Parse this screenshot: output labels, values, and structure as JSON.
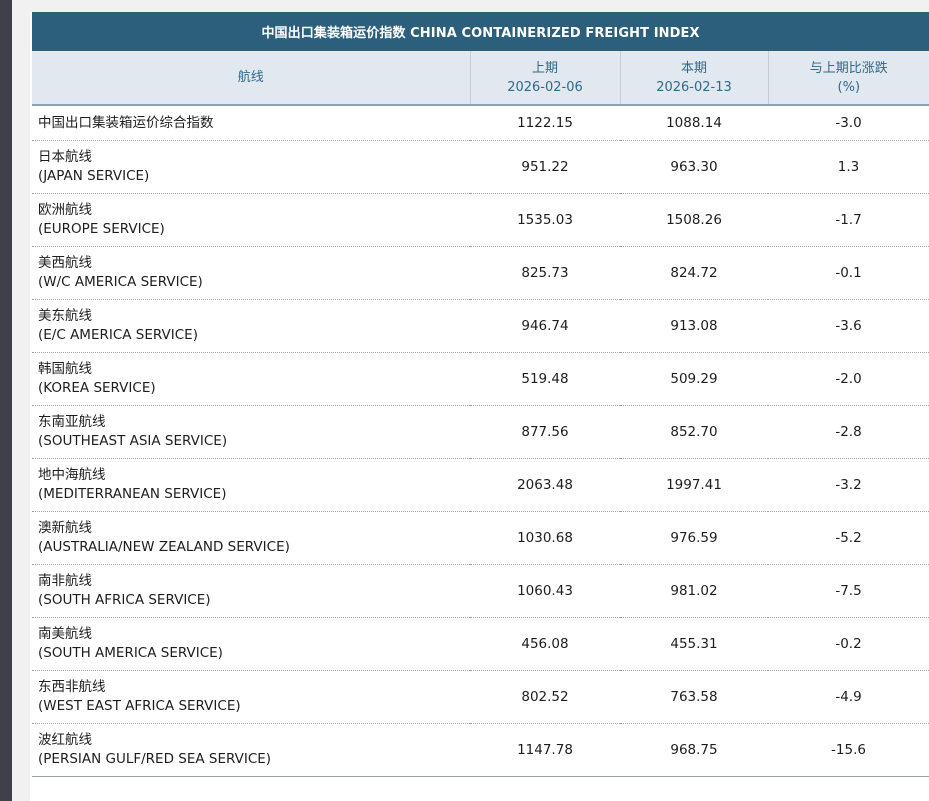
{
  "table": {
    "title": "中国出口集装箱运价指数 CHINA CONTAINERIZED FREIGHT INDEX",
    "headers": {
      "route": "航线",
      "prev_label": "上期",
      "prev_date": "2026-02-06",
      "cur_label": "本期",
      "cur_date": "2026-02-13",
      "change_label": "与上期比涨跌",
      "change_unit": "(%)"
    },
    "rows": [
      {
        "cn": "中国出口集装箱运价综合指数",
        "en": "",
        "prev": "1122.15",
        "cur": "1088.14",
        "change": "-3.0"
      },
      {
        "cn": "日本航线",
        "en": "(JAPAN SERVICE)",
        "prev": "951.22",
        "cur": "963.30",
        "change": "1.3"
      },
      {
        "cn": "欧洲航线",
        "en": "(EUROPE SERVICE)",
        "prev": "1535.03",
        "cur": "1508.26",
        "change": "-1.7"
      },
      {
        "cn": "美西航线",
        "en": "(W/C AMERICA SERVICE)",
        "prev": "825.73",
        "cur": "824.72",
        "change": "-0.1"
      },
      {
        "cn": "美东航线",
        "en": "(E/C AMERICA SERVICE)",
        "prev": "946.74",
        "cur": "913.08",
        "change": "-3.6"
      },
      {
        "cn": "韩国航线",
        "en": "(KOREA SERVICE)",
        "prev": "519.48",
        "cur": "509.29",
        "change": "-2.0"
      },
      {
        "cn": "东南亚航线",
        "en": "(SOUTHEAST ASIA SERVICE)",
        "prev": "877.56",
        "cur": "852.70",
        "change": "-2.8"
      },
      {
        "cn": "地中海航线",
        "en": "(MEDITERRANEAN SERVICE)",
        "prev": "2063.48",
        "cur": "1997.41",
        "change": "-3.2"
      },
      {
        "cn": "澳新航线",
        "en": "(AUSTRALIA/NEW ZEALAND SERVICE)",
        "prev": "1030.68",
        "cur": "976.59",
        "change": "-5.2"
      },
      {
        "cn": "南非航线",
        "en": "(SOUTH AFRICA SERVICE)",
        "prev": "1060.43",
        "cur": "981.02",
        "change": "-7.5"
      },
      {
        "cn": "南美航线",
        "en": "(SOUTH AMERICA SERVICE)",
        "prev": "456.08",
        "cur": "455.31",
        "change": "-0.2"
      },
      {
        "cn": "东西非航线",
        "en": "(WEST EAST AFRICA SERVICE)",
        "prev": "802.52",
        "cur": "763.58",
        "change": "-4.9"
      },
      {
        "cn": "波红航线",
        "en": "(PERSIAN GULF/RED SEA SERVICE)",
        "prev": "1147.78",
        "cur": "968.75",
        "change": "-15.6"
      }
    ]
  }
}
